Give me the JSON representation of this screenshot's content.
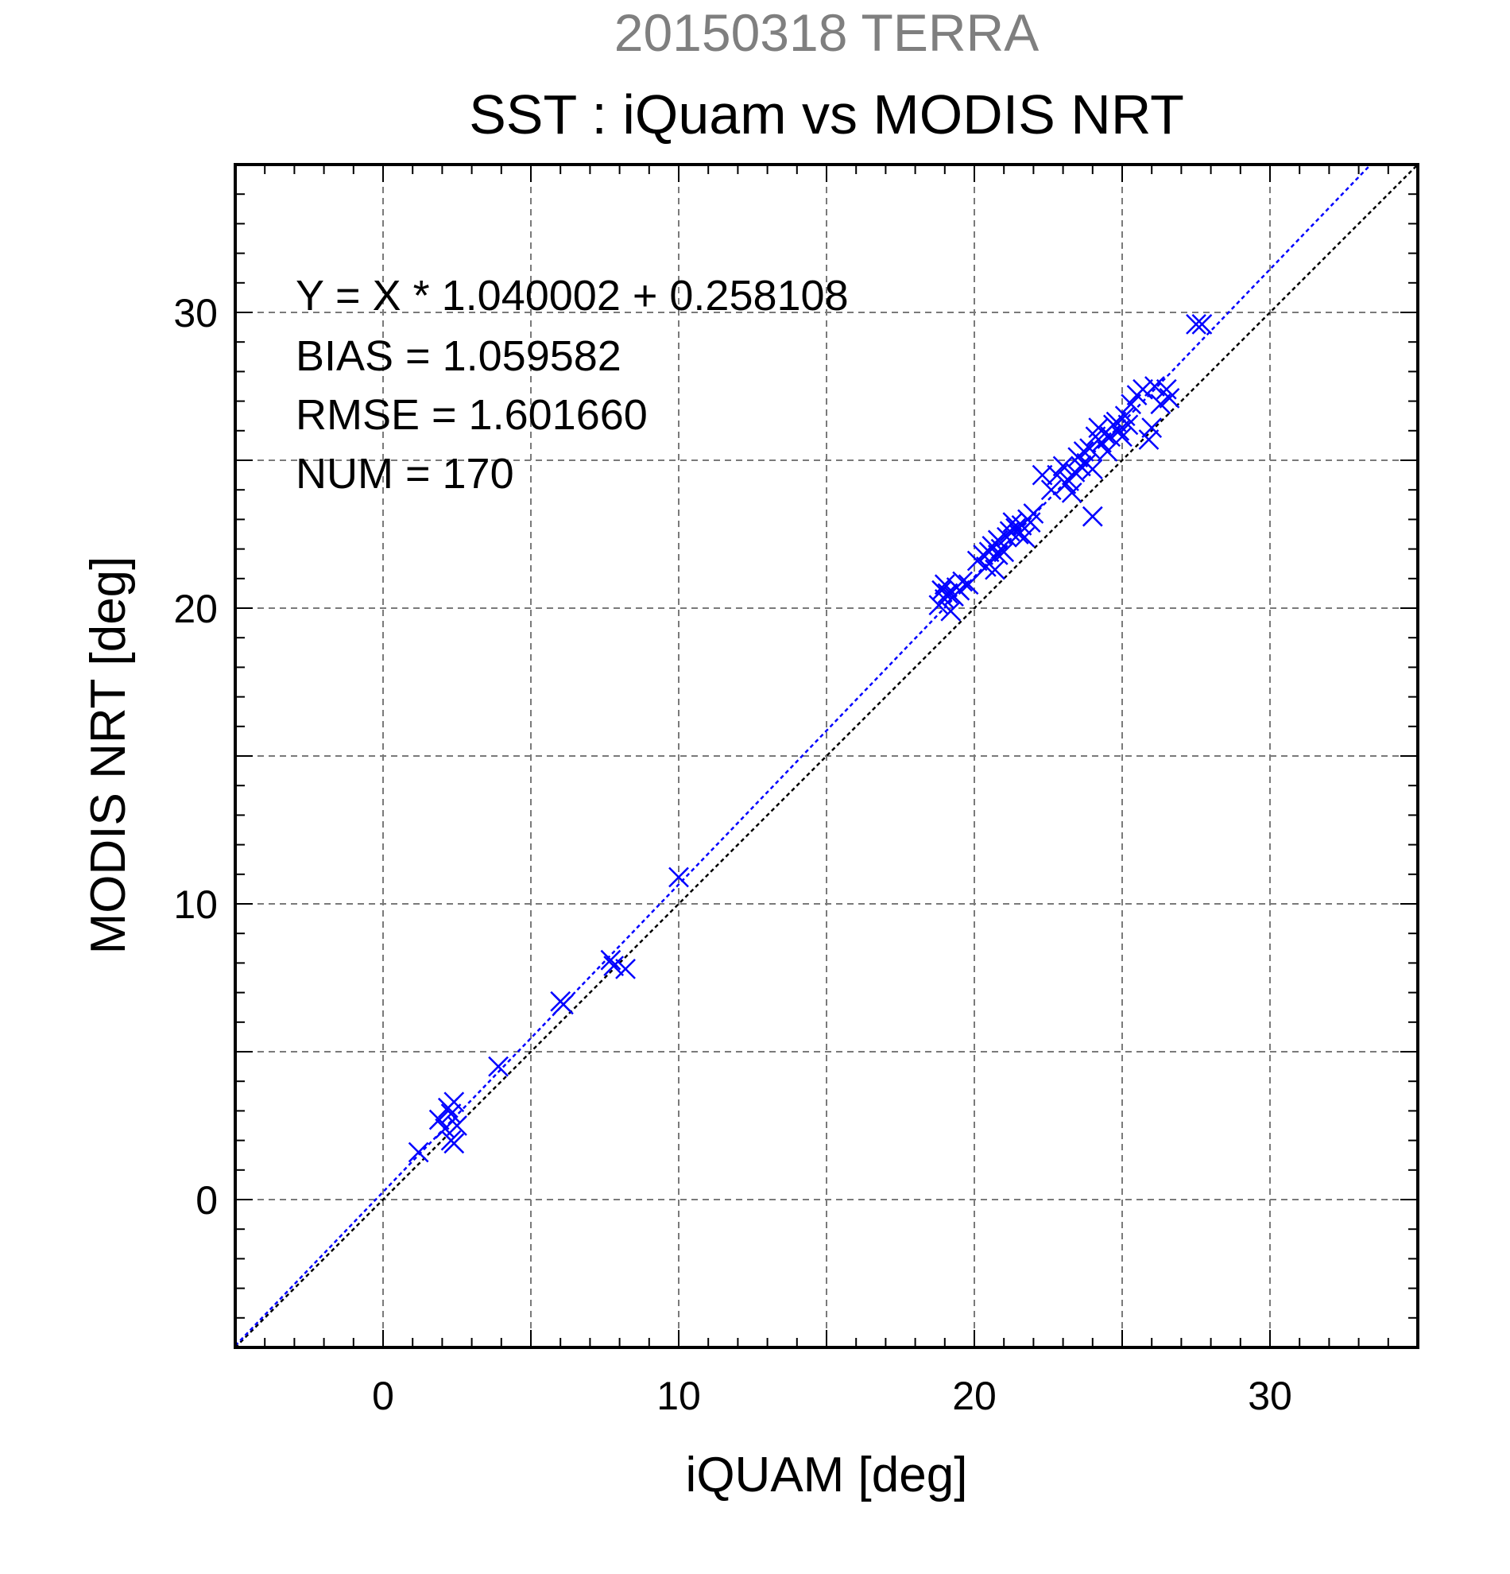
{
  "colors": {
    "series": "#0000ff",
    "identity_line": "#000000",
    "grid": "#7a7a7a",
    "suptitle": "#7f7f7f"
  },
  "chart_data": {
    "type": "scatter",
    "suptitle": "20150318 TERRA",
    "title": "SST : iQuam vs MODIS NRT",
    "xlabel": "iQUAM [deg]",
    "ylabel": "MODIS NRT [deg]",
    "xlim": [
      -5,
      35
    ],
    "ylim": [
      -5,
      35
    ],
    "major_ticks": [
      0,
      10,
      20,
      30
    ],
    "grid_step": 5,
    "minor_tick_step": 1,
    "grid": true,
    "marker": "x",
    "stats": [
      "Y = X * 1.040002 + 0.258108",
      "BIAS = 1.059582",
      "RMSE = 1.601660",
      "NUM = 170"
    ],
    "fit_line": {
      "slope": 1.040002,
      "intercept": 0.258108
    },
    "identity_line": {
      "slope": 1,
      "intercept": 0
    },
    "series": [
      {
        "x": [
          1.2,
          1.9,
          2.1,
          2.2,
          2.3,
          2.3,
          2.4,
          2.4,
          2.5,
          3.9,
          6.0,
          6.1,
          7.7,
          7.8,
          8.2,
          10.0,
          18.8,
          18.9,
          19.0,
          19.0,
          19.1,
          19.2,
          19.3,
          19.4,
          19.5,
          19.6,
          19.8,
          20.1,
          20.3,
          20.4,
          20.5,
          20.6,
          20.7,
          20.8,
          20.8,
          20.9,
          21.0,
          21.1,
          21.2,
          21.3,
          21.4,
          21.5,
          21.6,
          21.7,
          21.8,
          21.9,
          22.0,
          22.3,
          22.6,
          22.8,
          23.0,
          23.1,
          23.2,
          23.3,
          23.4,
          23.5,
          23.6,
          23.7,
          23.8,
          23.9,
          24.0,
          24.0,
          24.1,
          24.2,
          24.3,
          24.4,
          24.5,
          24.6,
          24.7,
          24.8,
          24.9,
          25.0,
          25.1,
          25.2,
          25.3,
          25.5,
          25.7,
          25.9,
          26.0,
          26.1,
          26.3,
          26.5,
          26.6,
          27.5,
          27.7
        ],
        "y": [
          1.6,
          2.7,
          2.4,
          3.1,
          2.0,
          2.9,
          3.3,
          1.9,
          2.5,
          4.5,
          6.7,
          6.6,
          8.1,
          7.9,
          7.8,
          10.9,
          20.1,
          20.6,
          20.3,
          20.8,
          20.5,
          19.9,
          20.4,
          20.7,
          20.6,
          20.9,
          20.8,
          21.6,
          21.8,
          21.4,
          21.9,
          22.1,
          21.3,
          22.3,
          21.8,
          22.0,
          21.9,
          22.4,
          22.6,
          22.9,
          22.7,
          22.5,
          22.8,
          22.4,
          23.0,
          22.9,
          23.2,
          24.5,
          24.0,
          24.5,
          24.8,
          24.2,
          24.3,
          23.9,
          24.6,
          25.1,
          24.8,
          25.3,
          24.9,
          25.4,
          23.1,
          24.7,
          25.8,
          26.1,
          25.6,
          25.9,
          25.3,
          25.8,
          26.2,
          26.3,
          26.0,
          25.8,
          26.5,
          26.2,
          26.9,
          27.2,
          27.4,
          25.7,
          26.1,
          27.5,
          26.9,
          27.4,
          27.1,
          29.6,
          29.6
        ]
      }
    ]
  }
}
